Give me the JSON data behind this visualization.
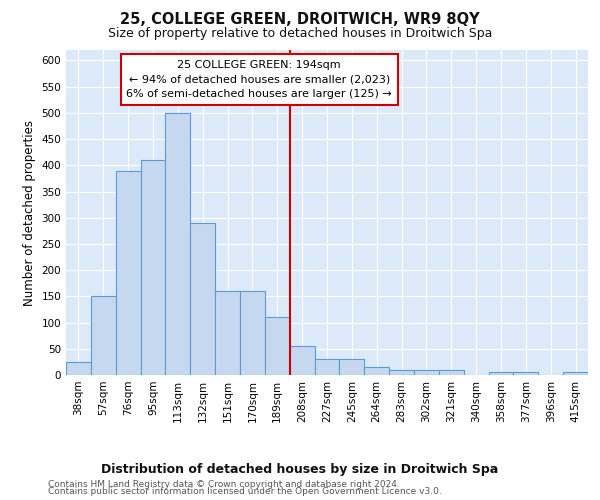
{
  "title": "25, COLLEGE GREEN, DROITWICH, WR9 8QY",
  "subtitle": "Size of property relative to detached houses in Droitwich Spa",
  "xlabel": "Distribution of detached houses by size in Droitwich Spa",
  "ylabel": "Number of detached properties",
  "categories": [
    "38sqm",
    "57sqm",
    "76sqm",
    "95sqm",
    "113sqm",
    "132sqm",
    "151sqm",
    "170sqm",
    "189sqm",
    "208sqm",
    "227sqm",
    "245sqm",
    "264sqm",
    "283sqm",
    "302sqm",
    "321sqm",
    "340sqm",
    "358sqm",
    "377sqm",
    "396sqm",
    "415sqm"
  ],
  "values": [
    25,
    150,
    390,
    410,
    500,
    290,
    160,
    160,
    110,
    55,
    30,
    30,
    15,
    10,
    10,
    10,
    0,
    5,
    5,
    0,
    5
  ],
  "bar_color": "#c5d8f0",
  "bar_edge_color": "#5b9bd5",
  "vline_color": "#cc0000",
  "annotation_line1": "25 COLLEGE GREEN: 194sqm",
  "annotation_line2": "← 94% of detached houses are smaller (2,023)",
  "annotation_line3": "6% of semi-detached houses are larger (125) →",
  "annotation_box_color": "#ffffff",
  "annotation_box_edge_color": "#cc0000",
  "ylim": [
    0,
    620
  ],
  "yticks": [
    0,
    50,
    100,
    150,
    200,
    250,
    300,
    350,
    400,
    450,
    500,
    550,
    600
  ],
  "plot_bg_color": "#dce9f8",
  "grid_color": "#ffffff",
  "fig_bg_color": "#ffffff",
  "footer1": "Contains HM Land Registry data © Crown copyright and database right 2024.",
  "footer2": "Contains public sector information licensed under the Open Government Licence v3.0.",
  "title_fontsize": 10.5,
  "subtitle_fontsize": 9,
  "xlabel_fontsize": 9,
  "ylabel_fontsize": 8.5,
  "tick_fontsize": 7.5,
  "annot_fontsize": 8,
  "footer_fontsize": 6.5
}
